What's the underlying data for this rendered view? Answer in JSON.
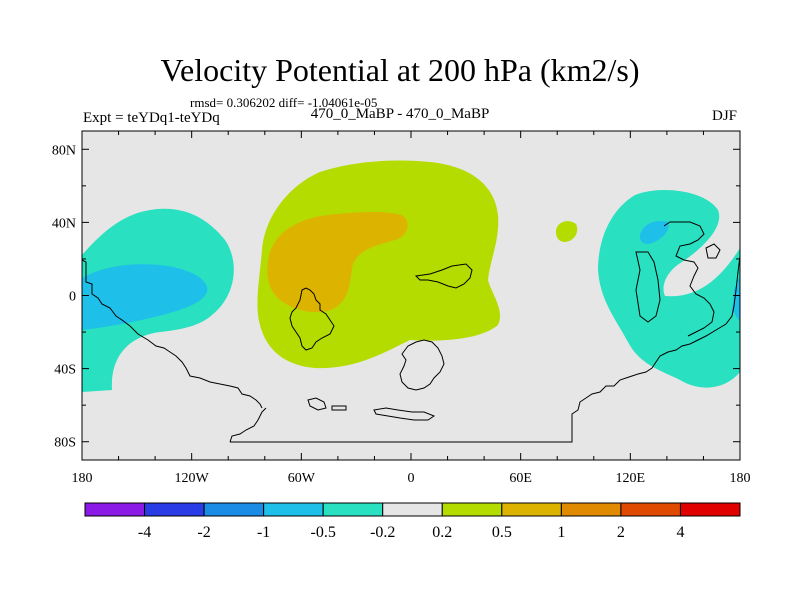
{
  "chart_data": {
    "type": "contour-map",
    "title": "Velocity Potential at 200 hPa (km2/s)",
    "stats": "rmsd= 0.306202 diff= -1.04061e-05",
    "left_label": "Expt = teYDq1-teYDq",
    "center_label": "470_0_MaBP - 470_0_MaBP",
    "right_label": "DJF",
    "x_ticks": [
      {
        "lon": -180,
        "label": "180"
      },
      {
        "lon": -120,
        "label": "120W"
      },
      {
        "lon": -60,
        "label": "60W"
      },
      {
        "lon": 0,
        "label": "0"
      },
      {
        "lon": 60,
        "label": "60E"
      },
      {
        "lon": 120,
        "label": "120E"
      },
      {
        "lon": 180,
        "label": "180"
      }
    ],
    "y_ticks": [
      {
        "lat": 80,
        "label": "80N"
      },
      {
        "lat": 40,
        "label": "40N"
      },
      {
        "lat": 0,
        "label": "0"
      },
      {
        "lat": -40,
        "label": "40S"
      },
      {
        "lat": -80,
        "label": "80S"
      }
    ],
    "xlim": [
      -180,
      180
    ],
    "ylim": [
      -90,
      90
    ],
    "colorbar": {
      "colors": [
        "#8c1ae6",
        "#2a3ce6",
        "#1a8ce6",
        "#1ec0ea",
        "#29e0c0",
        "#e6e6e6",
        "#b4dc00",
        "#dcb400",
        "#e08a00",
        "#e04a00",
        "#e00000"
      ],
      "labels": [
        "-4",
        "-2",
        "-1",
        "-0.5",
        "-0.2",
        "0.2",
        "0.5",
        "1",
        "2",
        "4"
      ]
    },
    "regions": [
      {
        "level": "-0.2 to -0.5",
        "color": "#29e0c0",
        "description": "western Pacific to Americas, equatorial"
      },
      {
        "level": "-0.5 to -1",
        "color": "#1ec0ea",
        "description": "eastern Pacific core"
      },
      {
        "level": "0.2 to 0.5",
        "color": "#b4dc00",
        "description": "South America to Africa"
      },
      {
        "level": "0.5 to 1",
        "color": "#dcb400",
        "description": "South America core"
      }
    ]
  }
}
